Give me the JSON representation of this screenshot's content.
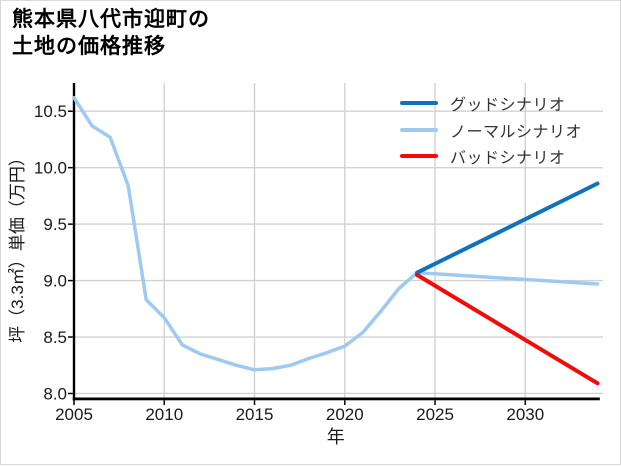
{
  "figure": {
    "title_line1": "熊本県八代市迎町の",
    "title_line2": "土地の価格推移",
    "background": "#ffffff",
    "border_color": "#d9d9d9"
  },
  "chart_data": {
    "type": "line",
    "title": "熊本県八代市迎町の土地の価格推移",
    "xlabel": "年",
    "ylabel": "坪（3.3㎡）単価（万円）",
    "xlim": [
      2005,
      2034
    ],
    "ylim": [
      7.96,
      10.75
    ],
    "grid": true,
    "grid_color": "#d2d2d2",
    "axis_color": "#000000",
    "tick_label_color": "#1a1a1a",
    "x_tick_values": [
      2005,
      2010,
      2015,
      2020,
      2025,
      2030
    ],
    "x_tick_labels": [
      "2005",
      "2010",
      "2015",
      "2020",
      "2025",
      "2030"
    ],
    "y_tick_values": [
      8.0,
      8.5,
      9.0,
      9.5,
      10.0,
      10.5
    ],
    "y_tick_labels": [
      "8.0",
      "8.5",
      "9.0",
      "9.5",
      "10.0",
      "10.5"
    ],
    "legend_position": "upper right",
    "series": [
      {
        "name": "ノーマルシナリオ",
        "color": "#9ecaf2",
        "width": 3.5,
        "legend_index": 1,
        "x": [
          2005,
          2006,
          2007,
          2008,
          2009,
          2010,
          2011,
          2012,
          2013,
          2014,
          2015,
          2016,
          2017,
          2018,
          2019,
          2020,
          2021,
          2022,
          2023,
          2024,
          2025,
          2034
        ],
        "values": [
          10.62,
          10.37,
          10.27,
          9.84,
          8.83,
          8.67,
          8.43,
          8.35,
          8.3,
          8.25,
          8.21,
          8.22,
          8.25,
          8.31,
          8.36,
          8.42,
          8.54,
          8.73,
          8.93,
          9.07,
          9.06,
          8.97
        ]
      },
      {
        "name": "グッドシナリオ",
        "color": "#0e72bd",
        "width": 4,
        "legend_index": 0,
        "x": [
          2024,
          2034
        ],
        "values": [
          9.07,
          9.86
        ]
      },
      {
        "name": "バッドシナリオ",
        "color": "#f50a0a",
        "width": 4,
        "legend_index": 2,
        "x": [
          2024,
          2034
        ],
        "values": [
          9.05,
          8.09
        ]
      }
    ]
  }
}
